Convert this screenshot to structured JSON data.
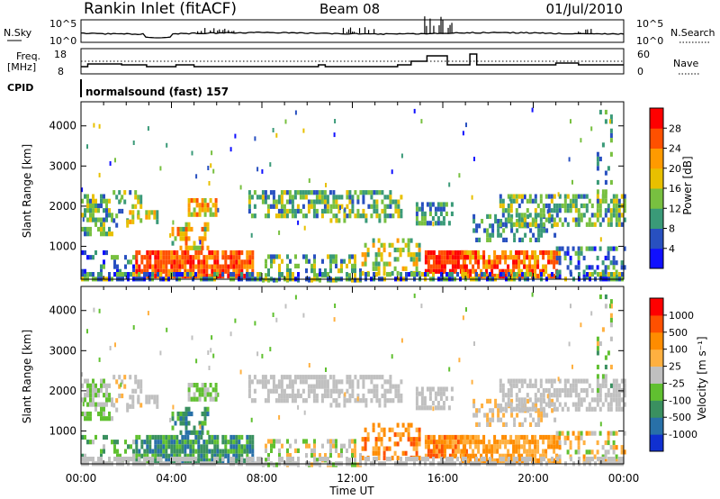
{
  "header": {
    "station": "Rankin Inlet (fitACF)",
    "beam": "Beam 08",
    "date": "01/Jul/2010"
  },
  "strip": {
    "nsky_label": "N.Sky",
    "nsearch_label": "N.Search",
    "freq_label_1": "Freq.",
    "freq_label_2": "[MHz]",
    "nave_label": "Nave",
    "cpid_label": "CPID",
    "cpid_value": "normalsound (fast) 157",
    "noise_ticks": [
      "10^5",
      "10^0"
    ],
    "freq_ticks": [
      "18",
      "8"
    ],
    "nave_ticks": [
      "60",
      "0"
    ]
  },
  "colors": {
    "power_scale": [
      "#1010ff",
      "#2850c0",
      "#3a9a78",
      "#78c040",
      "#e8c000",
      "#ff9a00",
      "#ff5000",
      "#ff0000"
    ],
    "velocity_scale": [
      "#1030d0",
      "#2870a8",
      "#3a9060",
      "#60c030",
      "#c0c0c0",
      "#ffb040",
      "#ff8c00",
      "#ff5000",
      "#ff0000"
    ]
  },
  "chart_data": [
    {
      "type": "heatmap",
      "title": "",
      "ylabel": "Slant Range [km]",
      "xlabel": "",
      "x_ticks": [
        "00:00",
        "04:00",
        "08:00",
        "12:00",
        "16:00",
        "20:00",
        "00:00"
      ],
      "x_range_hours": [
        0,
        24
      ],
      "ylim": [
        180,
        4600
      ],
      "y_ticks": [
        1000,
        2000,
        3000,
        4000
      ],
      "colorbar_label": "Power [dB]",
      "colorbar_ticks": [
        4,
        8,
        12,
        16,
        20,
        24,
        28
      ],
      "colorbar_range": [
        0,
        32
      ]
    },
    {
      "type": "heatmap",
      "title": "",
      "ylabel": "Slant Range [km]",
      "xlabel": "Time UT",
      "x_ticks": [
        "00:00",
        "04:00",
        "08:00",
        "12:00",
        "16:00",
        "20:00",
        "00:00"
      ],
      "x_range_hours": [
        0,
        24
      ],
      "ylim": [
        180,
        4600
      ],
      "y_ticks": [
        1000,
        2000,
        3000,
        4000
      ],
      "colorbar_label": "Velocity [m s⁻¹]",
      "colorbar_ticks": [
        "1000",
        "500",
        "100",
        "25",
        "-25",
        "-100",
        "-500",
        "-1000"
      ]
    }
  ]
}
